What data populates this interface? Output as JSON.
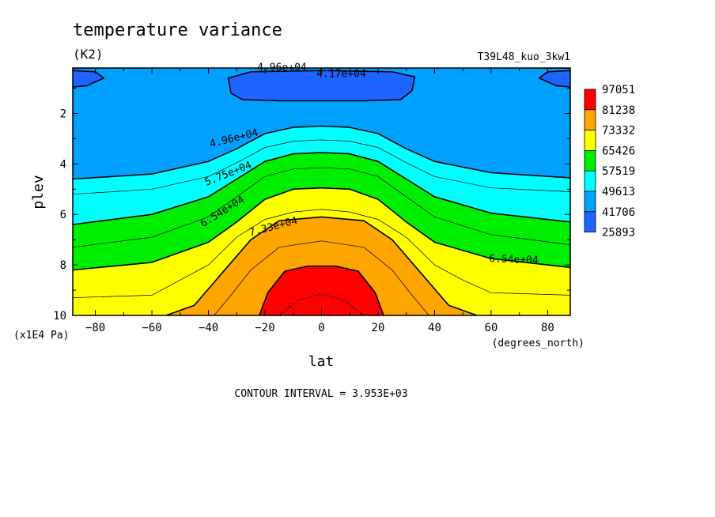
{
  "chart_data": {
    "type": "contour",
    "title": "temperature variance",
    "units": "(K2)",
    "dataset": "T39L48_kuo_3kw1",
    "xlabel": "lat",
    "x_units": "(degrees_north)",
    "ylabel": "plev",
    "y_units": "(x1E4 Pa)",
    "xlim": [
      -88,
      88
    ],
    "ylim": [
      10,
      0.2
    ],
    "x_ticks": [
      -80,
      -60,
      -40,
      -20,
      0,
      20,
      40,
      60,
      80
    ],
    "y_ticks": [
      2,
      4,
      6,
      8,
      10
    ],
    "contour_interval_text": "CONTOUR INTERVAL = 3.953E+03",
    "legend": {
      "placement": "right",
      "levels": [
        "97051",
        "81238",
        "73332",
        "65426",
        "57519",
        "49613",
        "41706",
        "25893"
      ],
      "colors": [
        "#ff0000",
        "#ffa500",
        "#ffff00",
        "#00ee00",
        "#00ffff",
        "#00a0ff",
        "#1e64ff"
      ]
    },
    "colors": {
      "red": "#ff0000",
      "orange": "#ffa500",
      "yellow": "#ffff00",
      "green": "#00ee00",
      "cyan": "#00ffff",
      "lightblue": "#00a0ff",
      "blue": "#1e64ff"
    },
    "contours": [
      {
        "label": "4.96e+04",
        "value": 49613,
        "width": "thick",
        "points": [
          [
            -88,
            4.6
          ],
          [
            -60,
            4.4
          ],
          [
            -40,
            3.9
          ],
          [
            -30,
            3.4
          ],
          [
            -20,
            2.8
          ],
          [
            -10,
            2.55
          ],
          [
            0,
            2.5
          ],
          [
            10,
            2.55
          ],
          [
            20,
            2.8
          ],
          [
            30,
            3.4
          ],
          [
            40,
            3.9
          ],
          [
            60,
            4.35
          ],
          [
            88,
            4.55
          ]
        ]
      },
      {
        "value": 53566,
        "width": "thin",
        "points": [
          [
            -88,
            5.2
          ],
          [
            -60,
            5.0
          ],
          [
            -40,
            4.5
          ],
          [
            -30,
            3.95
          ],
          [
            -20,
            3.35
          ],
          [
            -10,
            3.1
          ],
          [
            0,
            3.05
          ],
          [
            10,
            3.1
          ],
          [
            20,
            3.35
          ],
          [
            30,
            3.95
          ],
          [
            40,
            4.5
          ],
          [
            60,
            4.95
          ],
          [
            88,
            5.1
          ]
        ]
      },
      {
        "label": "5.75e+04",
        "value": 57519,
        "width": "thick",
        "points": [
          [
            -88,
            6.4
          ],
          [
            -60,
            6.0
          ],
          [
            -40,
            5.3
          ],
          [
            -30,
            4.6
          ],
          [
            -20,
            3.9
          ],
          [
            -10,
            3.6
          ],
          [
            0,
            3.55
          ],
          [
            10,
            3.6
          ],
          [
            20,
            3.9
          ],
          [
            30,
            4.6
          ],
          [
            40,
            5.3
          ],
          [
            60,
            5.95
          ],
          [
            88,
            6.3
          ]
        ]
      },
      {
        "value": 61472,
        "width": "thin",
        "points": [
          [
            -88,
            7.3
          ],
          [
            -60,
            6.9
          ],
          [
            -40,
            6.1
          ],
          [
            -30,
            5.3
          ],
          [
            -20,
            4.5
          ],
          [
            -10,
            4.2
          ],
          [
            0,
            4.15
          ],
          [
            10,
            4.2
          ],
          [
            20,
            4.5
          ],
          [
            30,
            5.3
          ],
          [
            40,
            6.1
          ],
          [
            60,
            6.8
          ],
          [
            88,
            7.2
          ]
        ]
      },
      {
        "label": "6.54e+04",
        "value": 65426,
        "width": "thick",
        "points": [
          [
            -88,
            8.2
          ],
          [
            -60,
            7.9
          ],
          [
            -40,
            7.1
          ],
          [
            -30,
            6.3
          ],
          [
            -20,
            5.4
          ],
          [
            -10,
            5.0
          ],
          [
            0,
            4.95
          ],
          [
            10,
            5.0
          ],
          [
            20,
            5.4
          ],
          [
            30,
            6.3
          ],
          [
            40,
            7.1
          ],
          [
            60,
            7.75
          ],
          [
            88,
            8.1
          ]
        ]
      },
      {
        "value": 69379,
        "width": "thin",
        "points": [
          [
            -88,
            9.3
          ],
          [
            -60,
            9.2
          ],
          [
            -50,
            8.6
          ],
          [
            -40,
            8.0
          ],
          [
            -30,
            6.9
          ],
          [
            -20,
            6.2
          ],
          [
            -10,
            5.9
          ],
          [
            0,
            5.8
          ],
          [
            10,
            5.9
          ],
          [
            20,
            6.2
          ],
          [
            30,
            6.9
          ],
          [
            40,
            8.0
          ],
          [
            50,
            8.6
          ],
          [
            60,
            9.1
          ],
          [
            88,
            9.2
          ]
        ]
      },
      {
        "label": "7.33e+04",
        "value": 73332,
        "width": "thick",
        "points": [
          [
            -55,
            10.0
          ],
          [
            -45,
            9.6
          ],
          [
            -35,
            8.3
          ],
          [
            -25,
            7.0
          ],
          [
            -15,
            6.25
          ],
          [
            0,
            6.1
          ],
          [
            15,
            6.25
          ],
          [
            25,
            7.0
          ],
          [
            35,
            8.3
          ],
          [
            45,
            9.6
          ],
          [
            55,
            10.0
          ]
        ]
      },
      {
        "value": 77285,
        "width": "thin",
        "points": [
          [
            -38,
            10.0
          ],
          [
            -32,
            9.2
          ],
          [
            -25,
            8.2
          ],
          [
            -15,
            7.3
          ],
          [
            0,
            7.05
          ],
          [
            15,
            7.3
          ],
          [
            25,
            8.2
          ],
          [
            32,
            9.2
          ],
          [
            38,
            10.0
          ]
        ]
      },
      {
        "value": 81238,
        "width": "thick",
        "points": [
          [
            -22,
            10.0
          ],
          [
            -19,
            9.1
          ],
          [
            -13,
            8.25
          ],
          [
            -5,
            8.05
          ],
          [
            0,
            8.05
          ],
          [
            5,
            8.05
          ],
          [
            13,
            8.25
          ],
          [
            19,
            9.1
          ],
          [
            22,
            10.0
          ]
        ]
      },
      {
        "value": 85191,
        "width": "thin",
        "points": [
          [
            -15,
            10.0
          ],
          [
            -8,
            9.4
          ],
          [
            0,
            9.15
          ],
          [
            8,
            9.4
          ],
          [
            15,
            10.0
          ]
        ]
      },
      {
        "label": "4.17e+04",
        "value": 41706,
        "width": "thick",
        "closed": true,
        "points": [
          [
            -33,
            0.6
          ],
          [
            -32,
            1.2
          ],
          [
            -28,
            1.45
          ],
          [
            -15,
            1.5
          ],
          [
            0,
            1.5
          ],
          [
            15,
            1.5
          ],
          [
            28,
            1.45
          ],
          [
            32,
            1.1
          ],
          [
            33,
            0.55
          ],
          [
            25,
            0.35
          ],
          [
            0,
            0.3
          ],
          [
            -25,
            0.35
          ]
        ]
      },
      {
        "value": 41706,
        "width": "thick",
        "points": [
          [
            -88,
            0.3
          ],
          [
            -80,
            0.35
          ],
          [
            -77,
            0.6
          ],
          [
            -83,
            0.9
          ],
          [
            -88,
            0.95
          ]
        ]
      },
      {
        "value": 41706,
        "width": "thick",
        "points": [
          [
            88,
            0.3
          ],
          [
            80,
            0.35
          ],
          [
            77,
            0.6
          ],
          [
            83,
            0.9
          ],
          [
            88,
            0.95
          ]
        ]
      },
      {
        "label": "4.96e+04",
        "value": 49613,
        "width": "thin",
        "points": [
          [
            -88,
            0.22
          ],
          [
            -40,
            0.2
          ],
          [
            0,
            0.2
          ],
          [
            40,
            0.2
          ],
          [
            88,
            0.22
          ]
        ]
      }
    ],
    "labels": [
      {
        "text": "4.96e+04",
        "x": -14,
        "y": 0.2,
        "angle": 0
      },
      {
        "text": "4.17e+04",
        "x": 7,
        "y": 0.45,
        "angle": 0
      },
      {
        "text": "4.96e+04",
        "x": -31,
        "y": 3.0,
        "angle": -14
      },
      {
        "text": "5.75e+04",
        "x": -33,
        "y": 4.4,
        "angle": -22
      },
      {
        "text": "6.54e+04",
        "x": -35,
        "y": 5.9,
        "angle": -32
      },
      {
        "text": "7.33e+04",
        "x": -17,
        "y": 6.5,
        "angle": -15
      },
      {
        "text": "6.54e+04",
        "x": 68,
        "y": 7.8,
        "angle": 2
      }
    ]
  }
}
